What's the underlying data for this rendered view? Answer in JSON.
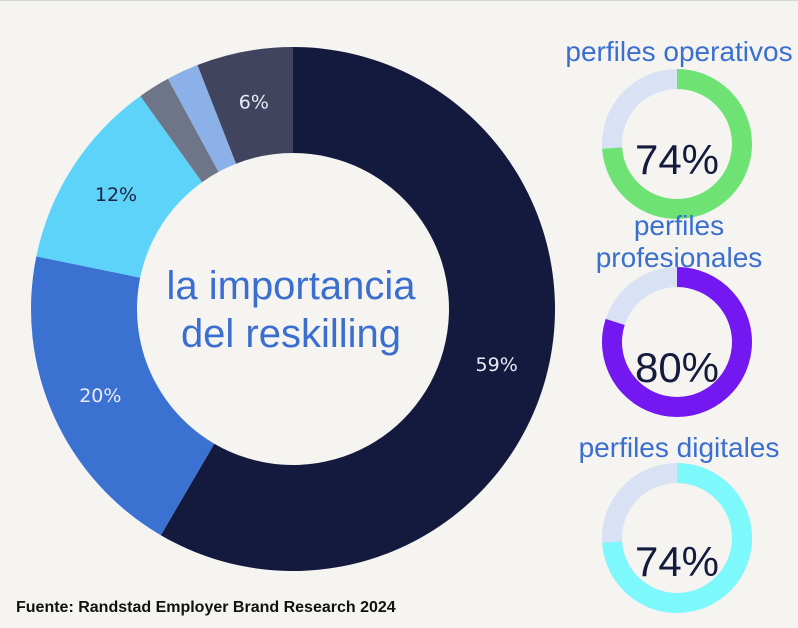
{
  "chart_data": [
    {
      "type": "pie",
      "title": "la importancia del reskilling",
      "title_lines": [
        "la importancia",
        "del reskilling"
      ],
      "slices": [
        {
          "value": 59,
          "label": "59%",
          "color": "#131a3e"
        },
        {
          "value": 20,
          "label": "20%",
          "color": "#3b72d2"
        },
        {
          "value": 12,
          "label": "12%",
          "color": "#5dd3fa"
        },
        {
          "value": 2,
          "label": "",
          "color": "#6f7588"
        },
        {
          "value": 2,
          "label": "",
          "color": "#8cb0e8"
        },
        {
          "value": 6,
          "label": "6%",
          "color": "#40445f"
        }
      ],
      "hole": "donut"
    },
    {
      "type": "pie",
      "title": "perfiles operativos",
      "title_lines": [
        "perfiles operativos"
      ],
      "value": 74,
      "label": "74%",
      "color": "#6ee374",
      "track_color": "#d8e2f4"
    },
    {
      "type": "pie",
      "title": "perfiles profesionales",
      "title_lines": [
        "perfiles",
        "profesionales"
      ],
      "value": 80,
      "label": "80%",
      "color": "#7318f0",
      "track_color": "#d8e2f4"
    },
    {
      "type": "pie",
      "title": "perfiles digitales",
      "title_lines": [
        "perfiles digitales"
      ],
      "value": 74,
      "label": "74%",
      "color": "#7df8fb",
      "track_color": "#d8e2f4"
    }
  ],
  "source": "Fuente: Randstad Employer Brand Research 2024"
}
